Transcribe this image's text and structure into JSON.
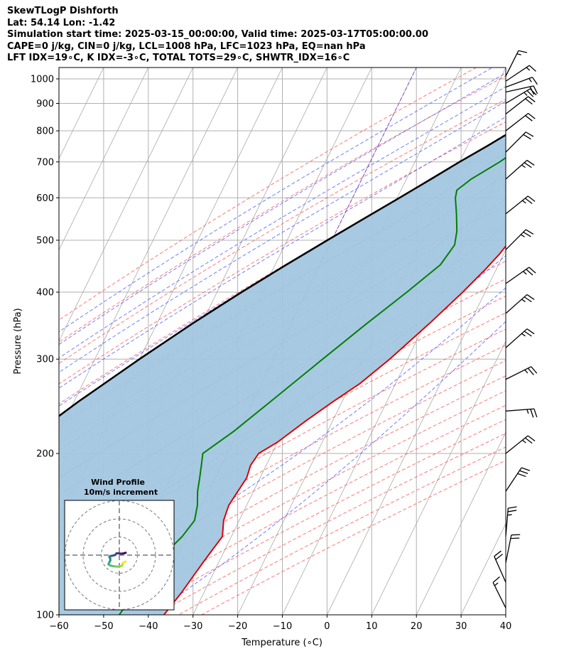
{
  "header": {
    "lines": [
      "SkewTLogP Dishforth",
      "Lat: 54.14   Lon: -1.42",
      "Simulation start time: 2025-03-15_00:00:00, Valid time: 2025-03-17T05:00:00.00",
      "CAPE=0 j/kg, CIN=0 j/kg, LCL=1008 hPa, LFC=1023 hPa, EQ=nan hPa",
      "LFT IDX=19∘C, K IDX=-3∘C, TOTAL TOTS=29∘C, SHWTR_IDX=16∘C"
    ]
  },
  "chart_data": {
    "type": "skewt",
    "xlabel": "Temperature (∘C)",
    "ylabel": "Pressure (hPa)",
    "xlim": [
      -60,
      40
    ],
    "ylim": [
      1050,
      100
    ],
    "y_scale": "log",
    "x_ticks": [
      -60,
      -50,
      -40,
      -30,
      -20,
      -10,
      0,
      10,
      20,
      30,
      40
    ],
    "x_tick_labels": [
      "−60",
      "−50",
      "−40",
      "−30",
      "−20",
      "−10",
      "0",
      "10",
      "20",
      "30",
      "40"
    ],
    "y_ticks": [
      1000,
      900,
      800,
      700,
      600,
      500,
      400,
      300,
      200,
      100
    ],
    "y_tick_labels": [
      "1000",
      "900",
      "800",
      "700",
      "600",
      "500",
      "400",
      "300",
      "200",
      "100"
    ],
    "grid": true,
    "colors": {
      "temperature": "#e00000",
      "dewpoint": "#008000",
      "parcel": "#000000",
      "shade": "#a3c6e0",
      "dry_adiabat": "#ff6060",
      "moist_adiabat": "#5566ff",
      "isotherm": "#aaaaaa",
      "special_isotherm": "#8844cc"
    },
    "temperature": [
      {
        "p": 1020,
        "t": 3.5
      },
      {
        "p": 990,
        "t": 2.8
      },
      {
        "p": 960,
        "t": 2.2
      },
      {
        "p": 930,
        "t": 2.5
      },
      {
        "p": 900,
        "t": 3.2
      },
      {
        "p": 870,
        "t": 4.5
      },
      {
        "p": 840,
        "t": 5.2
      },
      {
        "p": 800,
        "t": 5.0
      },
      {
        "p": 750,
        "t": 3.8
      },
      {
        "p": 700,
        "t": 2.8
      },
      {
        "p": 650,
        "t": 1.8
      },
      {
        "p": 600,
        "t": 1.2
      },
      {
        "p": 550,
        "t": 1.0
      },
      {
        "p": 500,
        "t": 0.0
      },
      {
        "p": 470,
        "t": -1.0
      },
      {
        "p": 440,
        "t": -2.5
      },
      {
        "p": 400,
        "t": -5.0
      },
      {
        "p": 350,
        "t": -9.0
      },
      {
        "p": 300,
        "t": -14.0
      },
      {
        "p": 270,
        "t": -18.0
      },
      {
        "p": 250,
        "t": -22.0
      },
      {
        "p": 230,
        "t": -26.0
      },
      {
        "p": 210,
        "t": -30.0
      },
      {
        "p": 200,
        "t": -33.0
      },
      {
        "p": 190,
        "t": -33.5
      },
      {
        "p": 180,
        "t": -33.0
      },
      {
        "p": 170,
        "t": -33.5
      },
      {
        "p": 160,
        "t": -34.0
      },
      {
        "p": 150,
        "t": -33.5
      },
      {
        "p": 140,
        "t": -32.0
      },
      {
        "p": 130,
        "t": -33.0
      },
      {
        "p": 125,
        "t": -33.5
      },
      {
        "p": 120,
        "t": -34.0
      },
      {
        "p": 110,
        "t": -35.0
      },
      {
        "p": 100,
        "t": -36.5
      }
    ],
    "dewpoint": [
      {
        "p": 1020,
        "t": 3.0
      },
      {
        "p": 1000,
        "t": 0.0
      },
      {
        "p": 980,
        "t": -2.5
      },
      {
        "p": 950,
        "t": -4.0
      },
      {
        "p": 920,
        "t": -4.5
      },
      {
        "p": 880,
        "t": -4.5
      },
      {
        "p": 840,
        "t": -4.0
      },
      {
        "p": 800,
        "t": -5.0
      },
      {
        "p": 750,
        "t": -7.5
      },
      {
        "p": 700,
        "t": -11.0
      },
      {
        "p": 650,
        "t": -15.5
      },
      {
        "p": 620,
        "t": -17.5
      },
      {
        "p": 600,
        "t": -17.0
      },
      {
        "p": 560,
        "t": -15.0
      },
      {
        "p": 520,
        "t": -13.0
      },
      {
        "p": 490,
        "t": -12.0
      },
      {
        "p": 450,
        "t": -13.0
      },
      {
        "p": 400,
        "t": -17.5
      },
      {
        "p": 350,
        "t": -23.0
      },
      {
        "p": 300,
        "t": -29.0
      },
      {
        "p": 250,
        "t": -36.0
      },
      {
        "p": 220,
        "t": -41.0
      },
      {
        "p": 200,
        "t": -45.5
      },
      {
        "p": 190,
        "t": -44.5
      },
      {
        "p": 180,
        "t": -43.5
      },
      {
        "p": 170,
        "t": -42.5
      },
      {
        "p": 160,
        "t": -41.0
      },
      {
        "p": 150,
        "t": -40.0
      },
      {
        "p": 140,
        "t": -41.0
      },
      {
        "p": 130,
        "t": -43.0
      },
      {
        "p": 120,
        "t": -45.0
      },
      {
        "p": 110,
        "t": -45.5
      },
      {
        "p": 100,
        "t": -46.5
      }
    ],
    "parcel": [
      {
        "p": 1020,
        "t": 3.5
      },
      {
        "p": 1000,
        "t": 2.0
      },
      {
        "p": 950,
        "t": -1.0
      },
      {
        "p": 900,
        "t": -4.5
      },
      {
        "p": 850,
        "t": -8.0
      },
      {
        "p": 800,
        "t": -11.5
      },
      {
        "p": 750,
        "t": -15.5
      },
      {
        "p": 700,
        "t": -20.0
      },
      {
        "p": 650,
        "t": -24.5
      },
      {
        "p": 600,
        "t": -29.5
      },
      {
        "p": 550,
        "t": -35.0
      },
      {
        "p": 500,
        "t": -41.0
      },
      {
        "p": 450,
        "t": -47.5
      },
      {
        "p": 400,
        "t": -54.5
      },
      {
        "p": 350,
        "t": -62.0
      },
      {
        "p": 300,
        "t": -70.0
      },
      {
        "p": 250,
        "t": -79.0
      },
      {
        "p": 200,
        "t": -89.0
      },
      {
        "p": 150,
        "t": -101.0
      },
      {
        "p": 100,
        "t": -117.0
      }
    ],
    "wind_barbs": [
      {
        "p": 1012,
        "u": 3,
        "v": 6
      },
      {
        "p": 990,
        "u": 6,
        "v": 4
      },
      {
        "p": 965,
        "u": 8,
        "v": 3
      },
      {
        "p": 945,
        "u": 9,
        "v": 2
      },
      {
        "p": 900,
        "u": 10,
        "v": 6
      },
      {
        "p": 860,
        "u": 9,
        "v": 7
      },
      {
        "p": 800,
        "u": 9,
        "v": 7
      },
      {
        "p": 730,
        "u": 8,
        "v": 8
      },
      {
        "p": 650,
        "u": 9,
        "v": 8
      },
      {
        "p": 560,
        "u": 10,
        "v": 8
      },
      {
        "p": 480,
        "u": 9,
        "v": 9
      },
      {
        "p": 415,
        "u": 10,
        "v": 7
      },
      {
        "p": 365,
        "u": 9,
        "v": 8
      },
      {
        "p": 315,
        "u": 9,
        "v": 8
      },
      {
        "p": 275,
        "u": 12,
        "v": 6
      },
      {
        "p": 240,
        "u": 13,
        "v": 1
      },
      {
        "p": 200,
        "u": 10,
        "v": 8
      },
      {
        "p": 170,
        "u": 8,
        "v": 12
      },
      {
        "p": 140,
        "u": 1,
        "v": 12
      },
      {
        "p": 125,
        "u": 2,
        "v": 10
      },
      {
        "p": 115,
        "u": -4,
        "v": 9
      },
      {
        "p": 103,
        "u": -4,
        "v": 8
      }
    ],
    "hodograph": {
      "title": "Wind Profile",
      "subtitle": "10m/s increment",
      "ring_spacing": 10,
      "rings": 3,
      "points": [
        {
          "u": 3.5,
          "v": 1.3
        },
        {
          "u": 2.5,
          "v": 1.0
        },
        {
          "u": 1.0,
          "v": 0.8
        },
        {
          "u": -0.5,
          "v": 1.0
        },
        {
          "u": -1.5,
          "v": 1.0
        },
        {
          "u": -2.5,
          "v": 0.0
        },
        {
          "u": -4.5,
          "v": -0.5
        },
        {
          "u": -5.0,
          "v": -0.5
        },
        {
          "u": -5.5,
          "v": -1.0
        },
        {
          "u": -5.0,
          "v": -2.0
        },
        {
          "u": -5.0,
          "v": -3.0
        },
        {
          "u": -5.5,
          "v": -4.0
        },
        {
          "u": -6.0,
          "v": -5.0
        },
        {
          "u": -5.5,
          "v": -5.5
        },
        {
          "u": -4.0,
          "v": -6.0
        },
        {
          "u": -2.0,
          "v": -6.3
        },
        {
          "u": 0.0,
          "v": -6.3
        },
        {
          "u": 1.5,
          "v": -5.8
        },
        {
          "u": 2.0,
          "v": -4.5
        },
        {
          "u": 2.5,
          "v": -4.0
        },
        {
          "u": 3.5,
          "v": -3.5
        }
      ]
    }
  }
}
